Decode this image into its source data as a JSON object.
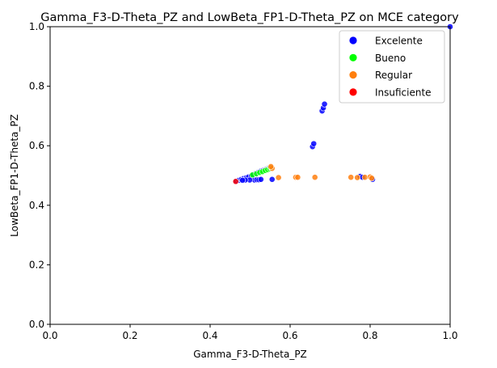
{
  "chart_data": {
    "type": "scatter",
    "title": "Gamma_F3-D-Theta_PZ and LowBeta_FP1-D-Theta_PZ on MCE category",
    "xlabel": "Gamma_F3-D-Theta_PZ",
    "ylabel": "LowBeta_FP1-D-Theta_PZ",
    "xlim": [
      0.0,
      1.0
    ],
    "ylim": [
      0.0,
      1.0
    ],
    "xticks": [
      "0.0",
      "0.2",
      "0.4",
      "0.6",
      "0.8",
      "1.0"
    ],
    "yticks": [
      "0.0",
      "0.2",
      "0.4",
      "0.6",
      "0.8",
      "1.0"
    ],
    "grid": false,
    "legend_position": "top-right",
    "series": [
      {
        "name": "Excelente",
        "color": "#0000ff",
        "points": [
          [
            0.465,
            0.481
          ],
          [
            0.472,
            0.484
          ],
          [
            0.478,
            0.487
          ],
          [
            0.484,
            0.49
          ],
          [
            0.49,
            0.492
          ],
          [
            0.496,
            0.495
          ],
          [
            0.503,
            0.499
          ],
          [
            0.508,
            0.503
          ],
          [
            0.514,
            0.507
          ],
          [
            0.52,
            0.51
          ],
          [
            0.526,
            0.514
          ],
          [
            0.532,
            0.517
          ],
          [
            0.537,
            0.519
          ],
          [
            0.541,
            0.521
          ],
          [
            0.546,
            0.524
          ],
          [
            0.511,
            0.485
          ],
          [
            0.517,
            0.486
          ],
          [
            0.522,
            0.486
          ],
          [
            0.527,
            0.487
          ],
          [
            0.499,
            0.485
          ],
          [
            0.488,
            0.485
          ],
          [
            0.481,
            0.484
          ],
          [
            0.555,
            0.487
          ],
          [
            0.656,
            0.597
          ],
          [
            0.659,
            0.607
          ],
          [
            0.68,
            0.717
          ],
          [
            0.683,
            0.727
          ],
          [
            0.686,
            0.74
          ],
          [
            0.775,
            0.497
          ],
          [
            0.781,
            0.494
          ],
          [
            0.806,
            0.487
          ],
          [
            1.0,
            1.0
          ]
        ]
      },
      {
        "name": "Bueno",
        "color": "#00ff00",
        "points": [
          [
            0.506,
            0.502
          ],
          [
            0.516,
            0.506
          ],
          [
            0.524,
            0.51
          ],
          [
            0.531,
            0.513
          ],
          [
            0.538,
            0.517
          ],
          [
            0.544,
            0.52
          ],
          [
            0.549,
            0.523
          ],
          [
            0.552,
            0.526
          ]
        ]
      },
      {
        "name": "Regular",
        "color": "#ff7f0e",
        "points": [
          [
            0.555,
            0.524
          ],
          [
            0.552,
            0.53
          ],
          [
            0.571,
            0.493
          ],
          [
            0.614,
            0.494
          ],
          [
            0.619,
            0.494
          ],
          [
            0.662,
            0.494
          ],
          [
            0.752,
            0.494
          ],
          [
            0.768,
            0.493
          ],
          [
            0.787,
            0.494
          ],
          [
            0.8,
            0.495
          ],
          [
            0.804,
            0.491
          ]
        ]
      },
      {
        "name": "Insuficiente",
        "color": "#ff0000",
        "points": [
          [
            0.464,
            0.48
          ]
        ]
      }
    ]
  }
}
